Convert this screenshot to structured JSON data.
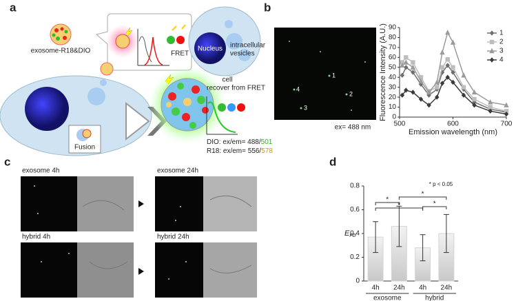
{
  "figure": {
    "panel_labels": [
      "a",
      "b",
      "c",
      "d"
    ],
    "a": {
      "exosome_label": "exosome-R18&DIO",
      "fret": "FRET",
      "nucleus": "Nucleus",
      "vesicles": [
        "intracellular",
        "vesicles"
      ],
      "cell": "cell",
      "fusion": "Fusion",
      "recover": "recover from FRET",
      "dio": [
        "DIO: ex/em= 488/",
        "501"
      ],
      "r18": [
        "R18: ex/em= 556/",
        "578"
      ]
    },
    "b": {
      "micrograph_labels": [
        "1",
        "2",
        "3",
        "4"
      ],
      "excitation": "ex= 488 nm"
    },
    "c": {
      "image_labels": [
        "exosome 4h",
        "exosome 24h",
        "hybrid 4h",
        "hybrid 24h"
      ]
    }
  },
  "chart_data": [
    {
      "type": "line",
      "xlabel": "Emission wavelength (nm)",
      "ylabel": "Fluorescence Intensity (A.U.)",
      "x": [
        505,
        512,
        525,
        540,
        555,
        570,
        580,
        590,
        600,
        620,
        640,
        670,
        700
      ],
      "series": [
        {
          "name": "1",
          "color": "#6e6e6e",
          "marker": "diamond",
          "values": [
            42,
            50,
            45,
            33,
            22,
            28,
            45,
            52,
            45,
            28,
            15,
            8,
            5
          ]
        },
        {
          "name": "2",
          "color": "#bdbdbd",
          "marker": "square",
          "values": [
            55,
            60,
            55,
            40,
            26,
            30,
            50,
            58,
            50,
            30,
            18,
            10,
            6
          ]
        },
        {
          "name": "3",
          "color": "#9a9a9a",
          "marker": "triangle",
          "values": [
            52,
            55,
            50,
            36,
            25,
            35,
            65,
            85,
            75,
            42,
            25,
            15,
            12
          ]
        },
        {
          "name": "4",
          "color": "#3a3a3a",
          "marker": "diamond",
          "values": [
            22,
            27,
            25,
            18,
            12,
            20,
            34,
            40,
            35,
            22,
            12,
            6,
            3
          ]
        }
      ],
      "xlim": [
        500,
        700
      ],
      "xticks": [
        500,
        600,
        700
      ],
      "ylim": [
        0,
        90
      ],
      "yticks": [
        0,
        10,
        20,
        30,
        40,
        50,
        60,
        70,
        80,
        90
      ],
      "grid": false,
      "legend": "upper right"
    },
    {
      "type": "bar",
      "ylabel": {
        "main": "E",
        "sub": "FD"
      },
      "categories": [
        "4h",
        "24h",
        "4h",
        "24h"
      ],
      "groups": [
        "exosome",
        "hybrid"
      ],
      "values": [
        0.37,
        0.46,
        0.28,
        0.4
      ],
      "errors": [
        0.13,
        0.17,
        0.11,
        0.16
      ],
      "color": "#d4d4d4",
      "ylim": [
        0,
        0.8
      ],
      "yticks": [
        0,
        0.2,
        0.4,
        0.6,
        0.8
      ],
      "grid": false,
      "annotation": "* p < 0.05",
      "significance_marks": [
        "*",
        "*",
        "*",
        "*"
      ]
    }
  ]
}
